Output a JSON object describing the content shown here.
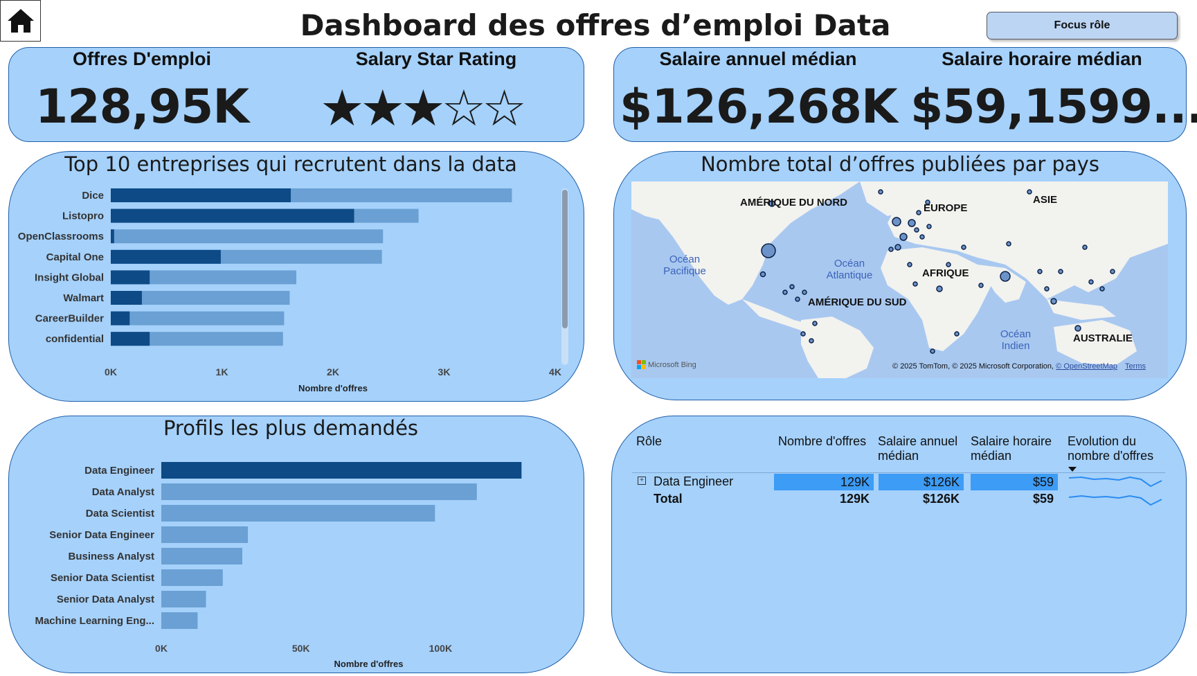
{
  "header": {
    "title": "Dashboard des offres d’emploi Data",
    "home_icon": "home-icon",
    "focus_button_label": "Focus rôle"
  },
  "kpis": {
    "offers_label": "Offres D'emploi",
    "offers_value": "128,95K",
    "rating_label": "Salary Star Rating",
    "rating_stars": "★★★☆☆",
    "rating_value": 3,
    "rating_max": 5,
    "annual_label": "Salaire annuel médian",
    "annual_value": "$126,268K",
    "hourly_label": "Salaire horaire médian",
    "hourly_value": "$59,1599..."
  },
  "chart_data": [
    {
      "type": "bar",
      "title": "Top 10 entreprises qui recrutent dans la data",
      "orientation": "horizontal",
      "categories": [
        "Dice",
        "Listopro",
        "OpenClassrooms",
        "Capital One",
        "Insight Global",
        "Walmart",
        "CareerBuilder",
        "confidential"
      ],
      "series": [
        {
          "values": [
            1620,
            2190,
            30,
            990,
            350,
            280,
            170,
            350
          ],
          "color": "#0d4a86"
        },
        {
          "values": [
            3610,
            2770,
            2450,
            2440,
            1670,
            1610,
            1560,
            1550
          ],
          "color": "#6aa0d3"
        }
      ],
      "xlabel": "Nombre d'offres",
      "xticks": [
        "0K",
        "1K",
        "2K",
        "3K",
        "4K"
      ],
      "xlim": [
        0,
        4000
      ]
    },
    {
      "type": "bar",
      "title": "Profils les plus demandés",
      "orientation": "horizontal",
      "categories": [
        "Data Engineer",
        "Data Analyst",
        "Data Scientist",
        "Senior Data Engineer",
        "Business Analyst",
        "Senior Data Scientist",
        "Senior Data Analyst",
        "Machine Learning Eng..."
      ],
      "values": [
        129000,
        113000,
        98000,
        31000,
        29000,
        22000,
        16000,
        13000
      ],
      "highlight_index": 0,
      "colors": {
        "highlight": "#0d4a86",
        "default": "#6aa0d3"
      },
      "xlabel": "Nombre d'offres",
      "xticks": [
        "0K",
        "50K",
        "100K"
      ],
      "xlim": [
        0,
        150000
      ]
    }
  ],
  "map": {
    "title": "Nombre total d’offres publiées par pays",
    "labels": [
      "AMÉRIQUE DU NORD",
      "EUROPE",
      "ASIE",
      "AFRIQUE",
      "AMÉRIQUE DU SUD",
      "AUSTRALIE"
    ],
    "oceans": [
      "Océan\nPacifique",
      "Océan\nAtlantique",
      "Océan\nIndien"
    ],
    "bing_logo": "Microsoft Bing",
    "copyright": "© 2025 TomTom, © 2025 Microsoft Corporation,",
    "osm_link": "© OpenStreetMap",
    "terms_link": "Terms"
  },
  "table": {
    "headers": [
      "Rôle",
      "Nombre d'offres",
      "Salaire annuel médian",
      "Salaire horaire médian",
      "Evolution du nombre d'offres"
    ],
    "rows": [
      {
        "role": "Data Engineer",
        "offers": "129K",
        "annual": "$126K",
        "hourly": "$59",
        "expand_icon": "expand-plus-icon"
      }
    ],
    "total": {
      "role": "Total",
      "offers": "129K",
      "annual": "$126K",
      "hourly": "$59"
    },
    "sort_icon": "sort-desc-icon"
  }
}
